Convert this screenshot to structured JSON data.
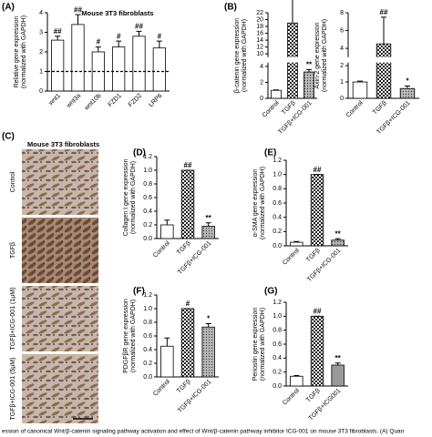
{
  "chart_data": [
    {
      "type": "bar",
      "panel": "(A)",
      "title": "Mouse 3T3 fibroblasts",
      "y_label": [
        "Relative gene expression",
        "(normalized with GAPDH)"
      ],
      "categories": [
        "wnt1",
        "wnt3a",
        "wnt10b",
        "FZD1",
        "FZD2",
        "LRP6"
      ],
      "values": [
        2.6,
        3.4,
        2.0,
        2.25,
        2.8,
        2.2
      ],
      "errors": [
        0.2,
        0.5,
        0.25,
        0.3,
        0.25,
        0.35
      ],
      "annotations": [
        "##",
        "##",
        "#",
        "#",
        "##",
        "#"
      ],
      "ylim": [
        0,
        4
      ],
      "yticks": [
        0,
        1,
        2,
        3,
        4
      ],
      "reference_line": 1,
      "fills": [
        "white",
        "white",
        "white",
        "white",
        "white",
        "white"
      ]
    },
    {
      "type": "bar",
      "panel": "(B)",
      "y_label": [
        "β-catenin gene expression",
        "(normalized with GAPDH)"
      ],
      "categories": [
        "Control",
        "TGFβ",
        "TGFβ+ICG-001"
      ],
      "values": [
        1,
        19,
        3.3
      ],
      "errors": [
        0.05,
        8,
        0.3
      ],
      "annotations": [
        null,
        "##",
        "**"
      ],
      "ylim": [
        0,
        22
      ],
      "yticks": [
        0,
        2,
        4,
        10,
        12,
        14,
        16,
        18,
        20,
        22
      ],
      "axis_break": [
        4.5,
        9
      ],
      "fills": [
        "white",
        "checker",
        "dots"
      ]
    },
    {
      "type": "bar",
      "y_label": [
        "Axin-2 gene expression",
        "(normalized with GAPDH)"
      ],
      "categories": [
        "Control",
        "TGFβ",
        "TGFβ+ICG-001"
      ],
      "values": [
        1,
        4.5,
        0.6
      ],
      "errors": [
        0.05,
        3,
        0.15
      ],
      "annotations": [
        null,
        "##",
        "*"
      ],
      "ylim": [
        0,
        8
      ],
      "yticks": [
        0,
        1,
        2,
        4,
        6,
        8
      ],
      "axis_break": [
        2.2,
        3
      ],
      "fills": [
        "white",
        "checker",
        "dots"
      ]
    },
    {
      "type": "bar",
      "panel": "(D)",
      "y_label": [
        "Collagen I gene expression",
        "(normalized with GAPDH)"
      ],
      "categories": [
        "Control",
        "TGFβ",
        "TGFβ+ICG-001"
      ],
      "values": [
        0.2,
        1.0,
        0.18
      ],
      "errors": [
        0.07,
        0,
        0.05
      ],
      "annotations": [
        null,
        "##",
        "**"
      ],
      "ylim": [
        0,
        1.2
      ],
      "yticks": [
        {
          "value": 0,
          "label": "0.0"
        },
        0.2,
        0.4,
        0.6,
        0.8,
        {
          "value": 1,
          "label": "1.0"
        },
        1.2
      ],
      "fills": [
        "white",
        "checker",
        "dots"
      ]
    },
    {
      "type": "bar",
      "panel": "(E)",
      "y_label": [
        "α-SMA gene expression",
        "(normalized with GAPDH)"
      ],
      "categories": [
        "Control",
        "TGFβ",
        "TGFβ+ICG-001"
      ],
      "values": [
        0.05,
        1.0,
        0.08
      ],
      "errors": [
        0.01,
        0,
        0.02
      ],
      "annotations": [
        null,
        "##",
        "**"
      ],
      "ylim": [
        0,
        1.2
      ],
      "yticks": [
        {
          "value": 0,
          "label": "0.0"
        },
        0.2,
        0.4,
        0.6,
        0.8,
        {
          "value": 1,
          "label": "1.0"
        },
        1.2
      ],
      "fills": [
        "white",
        "checker",
        "dots"
      ]
    },
    {
      "type": "bar",
      "panel": "(F)",
      "y_label": [
        "PDGFβR gene expression",
        "(normalized with GAPDH)"
      ],
      "categories": [
        "Control",
        "TGFβ",
        "TGFβ+ICG-001"
      ],
      "values": [
        0.45,
        1.0,
        0.73
      ],
      "errors": [
        0.12,
        0,
        0.05
      ],
      "annotations": [
        null,
        "#",
        "*"
      ],
      "ylim": [
        0,
        1.2
      ],
      "yticks": [
        {
          "value": 0,
          "label": "0.0"
        },
        0.2,
        0.4,
        0.6,
        0.8,
        {
          "value": 1,
          "label": "1.0"
        },
        1.2
      ],
      "fills": [
        "white",
        "checker",
        "dots"
      ]
    },
    {
      "type": "bar",
      "panel": "(G)",
      "y_label": [
        "Periostin gene expression",
        "(normalized with GAPDH)"
      ],
      "categories": [
        "Control",
        "TGFβ",
        "TGFβ+ICG001"
      ],
      "values": [
        0.14,
        1.0,
        0.3
      ],
      "errors": [
        0.01,
        0,
        0.03
      ],
      "annotations": [
        null,
        "##",
        "**"
      ],
      "ylim": [
        0,
        1.2
      ],
      "yticks": [
        {
          "value": 0,
          "label": "0.0"
        },
        0.2,
        0.4,
        0.6,
        0.8,
        {
          "value": 1,
          "label": "1.0"
        },
        1.2
      ],
      "fills": [
        "white",
        "checker",
        "gray"
      ]
    }
  ],
  "micrographs": {
    "panel": "(C)",
    "title": "Mouse 3T3 fibroblasts",
    "labels": [
      "Control",
      "TGFβ",
      "TGFβ+ICG-001 (1μM)",
      "TGFβ+ICG-001 (5μM)"
    ]
  },
  "caption": "ession of canonical Wnt/β-catenin signaling pathway activation and effect of Wnt/β-catenin pathway inhibitor ICG-001 on mouse 3T3 fibroblasts. (A) Quan"
}
